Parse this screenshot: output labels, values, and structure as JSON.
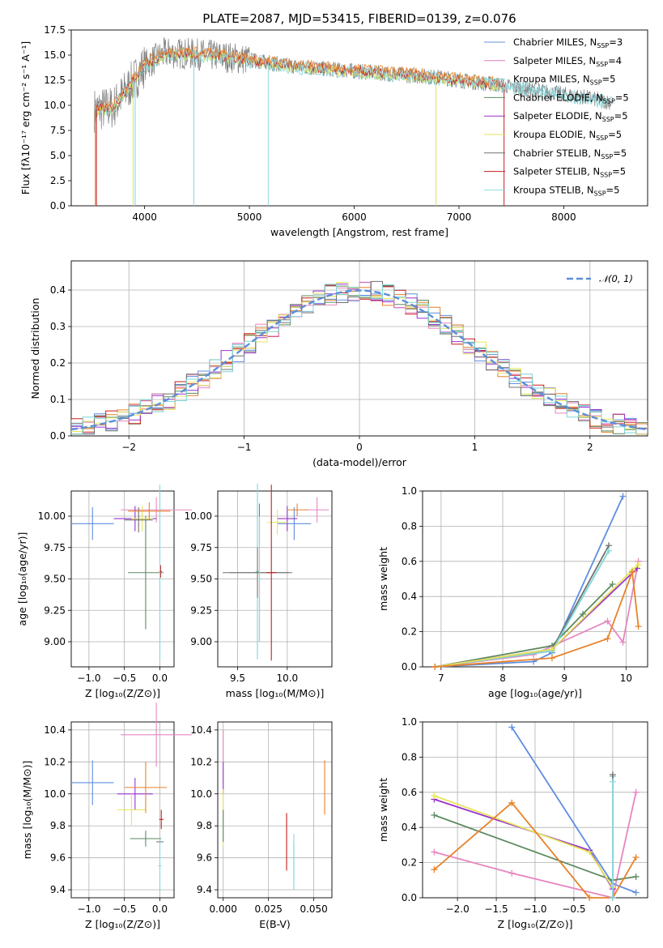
{
  "figure_title": "PLATE=2087, MJD=53415, FIBERID=0139, z=0.076",
  "series_names": [
    "Chabrier MILES",
    "Salpeter MILES",
    "Kroupa MILES",
    "Chabrier ELODIE",
    "Salpeter ELODIE",
    "Kroupa ELODIE",
    "Chabrier STELIB",
    "Salpeter STELIB",
    "Kroupa STELIB"
  ],
  "colors": [
    "#6a8fd8",
    "#e07bbf",
    "#78d6d6",
    "#5e8a60",
    "#9b30c0",
    "#e1e15a",
    "#707070",
    "#c42020",
    "#8fd8e0"
  ],
  "xy_colors": [
    "#5f8de0",
    "#e686c0",
    "#7dd6d6",
    "#5e8a60",
    "#9932cc",
    "#e6e65a",
    "#707070",
    "#c81e1e",
    "#8fd8e0",
    "#e8822a"
  ],
  "chart_data": [
    {
      "id": "spectrum",
      "type": "line",
      "title": "PLATE=2087, MJD=53415, FIBERID=0139, z=0.076",
      "xlabel": "wavelength [Angstrom, rest frame]",
      "ylabel": "Flux [fλ10⁻¹⁷ erg cm⁻² s⁻¹ A⁻¹]",
      "xlim": [
        3300,
        8800
      ],
      "ylim": [
        0,
        17.5
      ],
      "xticks": [
        "4000",
        "5000",
        "6000",
        "7000",
        "8000"
      ],
      "yticks": [
        "0.0",
        "2.5",
        "5.0",
        "7.5",
        "10.0",
        "12.5",
        "15.0",
        "17.5"
      ],
      "legend_placement": "top-right",
      "legend": [
        "Chabrier MILES, N_SSP=3",
        "Salpeter MILES, N_SSP=4",
        "Kroupa MILES, N_SSP=5",
        "Chabrier ELODIE, N_SSP=5",
        "Salpeter ELODIE, N_SSP=5",
        "Kroupa ELODIE, N_SSP=5",
        "Chabrier STELIB, N_SSP=5",
        "Salpeter STELIB, N_SSP=5",
        "Kroupa STELIB, N_SSP=5"
      ],
      "data_continuum": {
        "wavelength": [
          3500,
          3700,
          3900,
          4000,
          4200,
          4500,
          4800,
          5000,
          5500,
          6000,
          6500,
          6800,
          7000,
          7400,
          7800,
          8200,
          8500
        ],
        "flux": [
          9.5,
          9.8,
          12.5,
          14.0,
          15.2,
          15.1,
          14.8,
          14.5,
          13.8,
          13.4,
          13.0,
          12.8,
          12.5,
          12.0,
          11.4,
          10.8,
          10.2
        ]
      },
      "grid": false
    },
    {
      "id": "residuals",
      "type": "step",
      "xlabel": "(data-model)/error",
      "ylabel": "Normed distribution",
      "xlim": [
        -2.5,
        2.5
      ],
      "ylim": [
        0,
        0.48
      ],
      "xticks": [
        "−2",
        "−1",
        "0",
        "1",
        "2"
      ],
      "yticks": [
        "0.0",
        "0.1",
        "0.2",
        "0.3",
        "0.4"
      ],
      "legend": [
        "𝒩(0, 1)"
      ],
      "legend_placement": "top-right",
      "grid": true
    },
    {
      "id": "age_vs_Z",
      "type": "scatter",
      "xlabel": "Z [log₁₀(Z/Z⊙)]",
      "ylabel": "age  [log₁₀(age/yr)]",
      "xlim": [
        -1.25,
        0.2
      ],
      "ylim": [
        8.8,
        10.2
      ],
      "xticks": [
        "−1.0",
        "−0.5",
        "0.0"
      ],
      "yticks": [
        "9.00",
        "9.25",
        "9.50",
        "9.75",
        "10.00"
      ],
      "points": [
        {
          "x": -0.95,
          "y": 9.94,
          "xerr": 0.3,
          "yerr": 0.13,
          "c": 0
        },
        {
          "x": -0.05,
          "y": 10.05,
          "xerr": 0.5,
          "yerr": 0.1,
          "c": 1
        },
        {
          "x": 0.0,
          "y": 9.55,
          "xerr": 0.02,
          "yerr": 0.7,
          "c": 2
        },
        {
          "x": -0.2,
          "y": 9.55,
          "xerr": 0.25,
          "yerr": 0.45,
          "c": 3
        },
        {
          "x": -0.35,
          "y": 9.98,
          "xerr": 0.3,
          "yerr": 0.1,
          "c": 4
        },
        {
          "x": -0.25,
          "y": 9.98,
          "xerr": 0.15,
          "yerr": 0.1,
          "c": 5
        },
        {
          "x": -0.3,
          "y": 9.97,
          "xerr": 0.2,
          "yerr": 0.1,
          "c": 6
        },
        {
          "x": 0.01,
          "y": 9.56,
          "xerr": 0.02,
          "yerr": 0.05,
          "c": 7
        },
        {
          "x": 0.0,
          "y": 9.5,
          "xerr": 0.02,
          "yerr": 0.5,
          "c": 8
        },
        {
          "x": -0.15,
          "y": 10.04,
          "xerr": 0.3,
          "yerr": 0.07,
          "c": 9
        }
      ],
      "grid": true
    },
    {
      "id": "age_vs_mass",
      "type": "scatter",
      "xlabel": "mass [log₁₀(M/M⊙)]",
      "ylabel": "",
      "xlim": [
        9.3,
        10.45
      ],
      "ylim": [
        8.8,
        10.2
      ],
      "xticks": [
        "9.5",
        "10.0"
      ],
      "yticks": [
        "9.00",
        "9.25",
        "9.50",
        "9.75",
        "10.00"
      ],
      "points": [
        {
          "x": 10.07,
          "y": 9.94,
          "xerr": 0.17,
          "yerr": 0.13,
          "c": 0
        },
        {
          "x": 10.3,
          "y": 10.05,
          "xerr": 0.12,
          "yerr": 0.1,
          "c": 1
        },
        {
          "x": 9.7,
          "y": 9.56,
          "xerr": 0.02,
          "yerr": 0.7,
          "c": 2
        },
        {
          "x": 9.72,
          "y": 9.55,
          "xerr": 0.3,
          "yerr": 0.55,
          "c": 3
        },
        {
          "x": 10.0,
          "y": 9.98,
          "xerr": 0.1,
          "yerr": 0.1,
          "c": 4
        },
        {
          "x": 9.9,
          "y": 9.95,
          "xerr": 0.1,
          "yerr": 0.1,
          "c": 5
        },
        {
          "x": 9.7,
          "y": 9.55,
          "xerr": 0.35,
          "yerr": 0.2,
          "c": 6
        },
        {
          "x": 9.84,
          "y": 9.55,
          "xerr": 0.05,
          "yerr": 0.7,
          "c": 7
        },
        {
          "x": 9.72,
          "y": 9.5,
          "xerr": 0.02,
          "yerr": 0.5,
          "c": 8
        },
        {
          "x": 10.1,
          "y": 10.05,
          "xerr": 0.1,
          "yerr": 0.05,
          "c": 9
        }
      ],
      "grid": true
    },
    {
      "id": "weight_vs_age",
      "type": "line",
      "xlabel": "age  [log₁₀(age/yr)]",
      "ylabel": "mass weight",
      "xlim": [
        6.7,
        10.35
      ],
      "ylim": [
        0,
        1.0
      ],
      "xticks": [
        "7",
        "8",
        "9",
        "10"
      ],
      "yticks": [
        "0.0",
        "0.2",
        "0.4",
        "0.6",
        "0.8",
        "1.0"
      ],
      "series": [
        {
          "c": 0,
          "points": [
            [
              6.9,
              0.0
            ],
            [
              8.5,
              0.03
            ],
            [
              8.8,
              0.08
            ],
            [
              9.95,
              0.97
            ]
          ]
        },
        {
          "c": 1,
          "points": [
            [
              6.9,
              0.0
            ],
            [
              8.5,
              0.07
            ],
            [
              9.7,
              0.26
            ],
            [
              9.95,
              0.14
            ],
            [
              10.2,
              0.6
            ]
          ]
        },
        {
          "c": 3,
          "points": [
            [
              6.9,
              0.0
            ],
            [
              8.8,
              0.12
            ],
            [
              9.3,
              0.3
            ],
            [
              9.78,
              0.47
            ]
          ]
        },
        {
          "c": 6,
          "points": [
            [
              6.9,
              0.0
            ],
            [
              8.8,
              0.1
            ],
            [
              9.72,
              0.69
            ]
          ]
        },
        {
          "c": 2,
          "points": [
            [
              6.9,
              0.0
            ],
            [
              8.8,
              0.09
            ],
            [
              9.72,
              0.66
            ]
          ]
        },
        {
          "c": 4,
          "points": [
            [
              6.9,
              0.0
            ],
            [
              8.8,
              0.1
            ],
            [
              10.18,
              0.56
            ]
          ]
        },
        {
          "c": 5,
          "points": [
            [
              6.9,
              0.0
            ],
            [
              8.8,
              0.1
            ],
            [
              10.1,
              0.55
            ],
            [
              10.2,
              0.58
            ]
          ]
        },
        {
          "c": 9,
          "points": [
            [
              6.9,
              0.0
            ],
            [
              8.8,
              0.05
            ],
            [
              9.7,
              0.16
            ],
            [
              10.1,
              0.54
            ],
            [
              10.2,
              0.23
            ]
          ]
        }
      ],
      "grid": true
    },
    {
      "id": "mass_vs_Z",
      "type": "scatter",
      "xlabel": "Z [log₁₀(Z/Z⊙)]",
      "ylabel": "mass [log₁₀(M/M⊙)]",
      "xlim": [
        -1.25,
        0.2
      ],
      "ylim": [
        9.35,
        10.45
      ],
      "xticks": [
        "−1.0",
        "−0.5",
        "0.0"
      ],
      "yticks": [
        "9.4",
        "9.6",
        "9.8",
        "10.0",
        "10.2",
        "10.4"
      ],
      "points": [
        {
          "x": -0.95,
          "y": 10.07,
          "xerr": 0.3,
          "yerr": 0.14,
          "c": 0
        },
        {
          "x": -0.05,
          "y": 10.37,
          "xerr": 0.5,
          "yerr": 0.2,
          "c": 1
        },
        {
          "x": 0.0,
          "y": 9.55,
          "xerr": 0.02,
          "yerr": 0.17,
          "c": 2
        },
        {
          "x": -0.2,
          "y": 9.72,
          "xerr": 0.22,
          "yerr": 0.05,
          "c": 3
        },
        {
          "x": -0.35,
          "y": 10.0,
          "xerr": 0.25,
          "yerr": 0.1,
          "c": 4
        },
        {
          "x": -0.4,
          "y": 9.9,
          "xerr": 0.2,
          "yerr": 0.1,
          "c": 5
        },
        {
          "x": 0.0,
          "y": 9.7,
          "xerr": 0.05,
          "yerr": 0.02,
          "c": 6
        },
        {
          "x": 0.02,
          "y": 9.84,
          "xerr": 0.03,
          "yerr": 0.06,
          "c": 7
        },
        {
          "x": 0.0,
          "y": 9.6,
          "xerr": 0.02,
          "yerr": 0.12,
          "c": 8
        },
        {
          "x": -0.2,
          "y": 10.04,
          "xerr": 0.3,
          "yerr": 0.16,
          "c": 9
        }
      ],
      "grid": true
    },
    {
      "id": "mass_vs_EBV",
      "type": "scatter",
      "xlabel": "E(B-V)",
      "ylabel": "",
      "xlim": [
        -0.003,
        0.06
      ],
      "ylim": [
        9.35,
        10.45
      ],
      "xticks": [
        "0.000",
        "0.025",
        "0.050"
      ],
      "yticks": [
        "9.4",
        "9.6",
        "9.8",
        "10.0",
        "10.2",
        "10.4"
      ],
      "points": [
        {
          "x": 0.0,
          "y": 10.1,
          "xerr": 0.0,
          "yerr": 0.1,
          "c": 4
        },
        {
          "x": 0.0,
          "y": 10.3,
          "xerr": 0.0,
          "yerr": 0.1,
          "c": 1
        },
        {
          "x": 0.0,
          "y": 9.85,
          "xerr": 0.0,
          "yerr": 0.18,
          "c": 5
        },
        {
          "x": 0.0,
          "y": 9.8,
          "xerr": 0.0,
          "yerr": 0.1,
          "c": 3
        },
        {
          "x": 0.035,
          "y": 9.7,
          "xerr": 0.0,
          "yerr": 0.18,
          "c": 7
        },
        {
          "x": 0.039,
          "y": 9.6,
          "xerr": 0.0,
          "yerr": 0.15,
          "c": 8
        },
        {
          "x": 0.039,
          "y": 9.55,
          "xerr": 0.0,
          "yerr": 0.15,
          "c": 2
        },
        {
          "x": 0.056,
          "y": 10.04,
          "xerr": 0.0,
          "yerr": 0.17,
          "c": 9
        }
      ],
      "grid": true
    },
    {
      "id": "weight_vs_Z",
      "type": "line",
      "xlabel": "Z [log₁₀(Z/Z⊙)]",
      "ylabel": "mass weight",
      "xlim": [
        -2.45,
        0.45
      ],
      "ylim": [
        0,
        1.0
      ],
      "xticks": [
        "−2.0",
        "−1.5",
        "−1.0",
        "−0.5",
        "0.0"
      ],
      "yticks": [
        "0.0",
        "0.2",
        "0.4",
        "0.6",
        "0.8",
        "1.0"
      ],
      "series": [
        {
          "c": 0,
          "points": [
            [
              -1.3,
              0.97
            ],
            [
              0.0,
              0.08
            ],
            [
              0.3,
              0.03
            ]
          ]
        },
        {
          "c": 1,
          "points": [
            [
              -2.3,
              0.26
            ],
            [
              -1.3,
              0.14
            ],
            [
              0.0,
              0.0
            ],
            [
              0.3,
              0.6
            ]
          ]
        },
        {
          "c": 3,
          "points": [
            [
              -2.3,
              0.47
            ],
            [
              0.0,
              0.1
            ],
            [
              0.3,
              0.12
            ]
          ]
        },
        {
          "c": 4,
          "points": [
            [
              -2.3,
              0.56
            ],
            [
              -0.3,
              0.27
            ],
            [
              0.0,
              0.05
            ]
          ]
        },
        {
          "c": 5,
          "points": [
            [
              -2.3,
              0.58
            ],
            [
              -0.3,
              0.26
            ],
            [
              0.0,
              0.06
            ]
          ]
        },
        {
          "c": 9,
          "points": [
            [
              -2.3,
              0.16
            ],
            [
              -1.3,
              0.54
            ],
            [
              -0.3,
              0.0
            ],
            [
              0.0,
              0.0
            ],
            [
              0.3,
              0.23
            ]
          ]
        },
        {
          "c": 2,
          "points": [
            [
              0.0,
              0.69
            ],
            [
              0.0,
              0.0
            ]
          ]
        },
        {
          "c": 6,
          "points": [
            [
              0.0,
              0.7
            ],
            [
              0.0,
              0.0
            ]
          ]
        },
        {
          "c": 8,
          "points": [
            [
              0.0,
              0.66
            ],
            [
              0.0,
              0.0
            ]
          ]
        }
      ],
      "grid": true
    }
  ]
}
